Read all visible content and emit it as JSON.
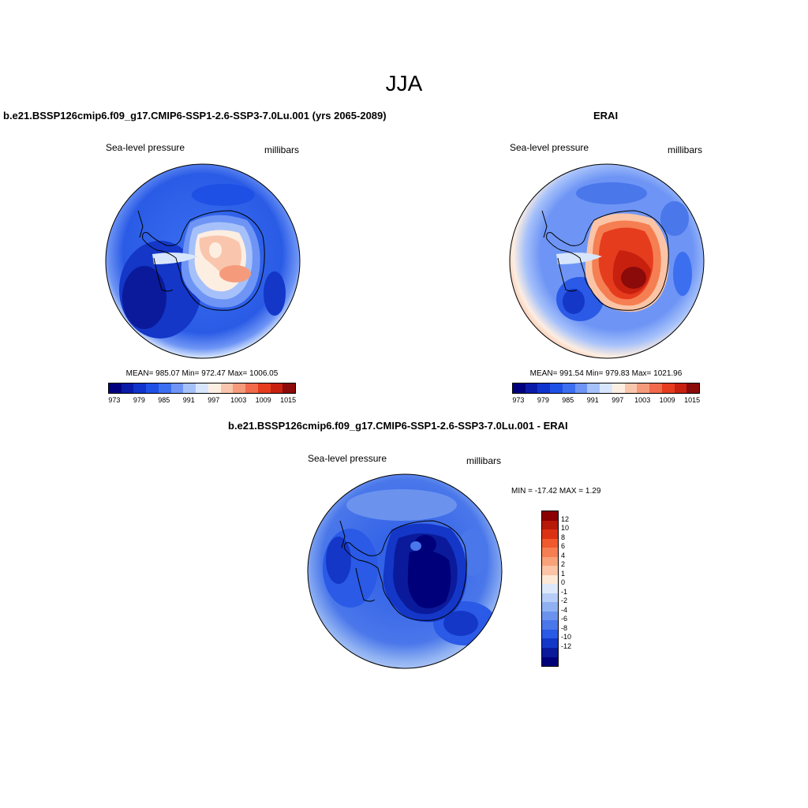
{
  "page_title": "JJA",
  "panels": [
    {
      "title": "b.e21.BSSP126cmip6.f09_g17.CMIP6-SSP1-2.6-SSP3-7.0Lu.001 (yrs 2065-2089)",
      "variable": "Sea-level pressure",
      "units": "millibars",
      "stats": "MEAN= 985.07  Min= 972.47  Max= 1006.05"
    },
    {
      "title": "ERAI",
      "variable": "Sea-level pressure",
      "units": "millibars",
      "stats": "MEAN= 991.54  Min= 979.83  Max= 1021.96"
    },
    {
      "title": "b.e21.BSSP126cmip6.f09_g17.CMIP6-SSP1-2.6-SSP3-7.0Lu.001 - ERAI",
      "variable": "Sea-level pressure",
      "units": "millibars",
      "stats": "MIN = -17.42 MAX =   1.29"
    }
  ],
  "abs_colorbar": {
    "colors": [
      "#00007f",
      "#0a1aa8",
      "#0f33cc",
      "#1e50e6",
      "#3c6ef0",
      "#6e95f5",
      "#a6c1fa",
      "#d7e6fc",
      "#fdeee2",
      "#f9c6ad",
      "#f59b7b",
      "#f06a4b",
      "#e63c1e",
      "#c8200f",
      "#8b0a0a"
    ],
    "ticks": [
      "973",
      "979",
      "985",
      "991",
      "997",
      "1003",
      "1009",
      "1015"
    ]
  },
  "diff_colorbar": {
    "colors": [
      "#8b0000",
      "#b81a08",
      "#dc3214",
      "#f05a2d",
      "#f57f52",
      "#f8a27a",
      "#fbc4a6",
      "#fde9d6",
      "#dde9fb",
      "#b6cdf7",
      "#8fb1f2",
      "#6b93ee",
      "#4a77ea",
      "#2a5ae6",
      "#1437c8",
      "#0a1a9a",
      "#00007a"
    ],
    "ticks": [
      "12",
      "10",
      "8",
      "6",
      "4",
      "2",
      "1",
      "0",
      "-1",
      "-2",
      "-4",
      "-6",
      "-8",
      "-10",
      "-12"
    ]
  }
}
